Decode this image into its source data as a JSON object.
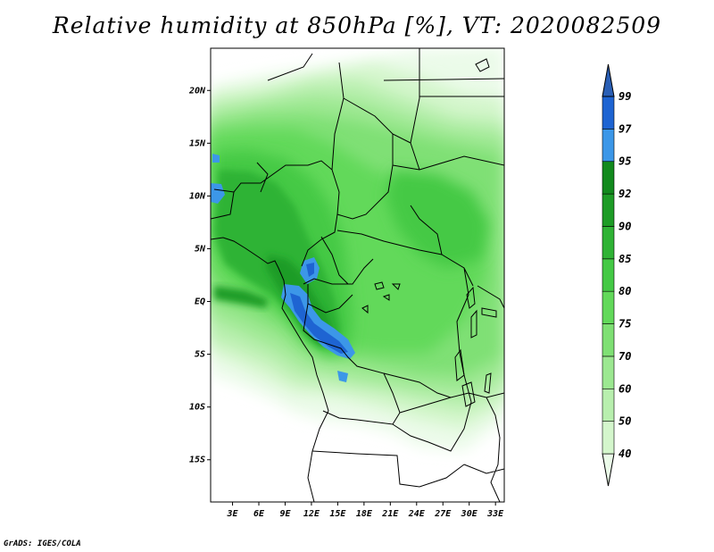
{
  "title": "Relative humidity at 850hPa [%], VT: 2020082509",
  "credit": "GrADS: IGES/COLA",
  "map": {
    "lat_range": [
      -19,
      24
    ],
    "lon_range": [
      0.5,
      34
    ],
    "lat_ticks": [
      {
        "value": 20,
        "label": "20N"
      },
      {
        "value": 15,
        "label": "15N"
      },
      {
        "value": 10,
        "label": "10N"
      },
      {
        "value": 5,
        "label": "5N"
      },
      {
        "value": 0,
        "label": "EQ"
      },
      {
        "value": -5,
        "label": "5S"
      },
      {
        "value": -10,
        "label": "10S"
      },
      {
        "value": -15,
        "label": "15S"
      }
    ],
    "lon_ticks": [
      {
        "value": 3,
        "label": "3E"
      },
      {
        "value": 6,
        "label": "6E"
      },
      {
        "value": 9,
        "label": "9E"
      },
      {
        "value": 12,
        "label": "12E"
      },
      {
        "value": 15,
        "label": "15E"
      },
      {
        "value": 18,
        "label": "18E"
      },
      {
        "value": 21,
        "label": "21E"
      },
      {
        "value": 24,
        "label": "24E"
      },
      {
        "value": 27,
        "label": "27E"
      },
      {
        "value": 30,
        "label": "30E"
      },
      {
        "value": 33,
        "label": "33E"
      }
    ]
  },
  "colorbar": {
    "levels": [
      "40",
      "50",
      "60",
      "70",
      "75",
      "80",
      "85",
      "90",
      "92",
      "95",
      "97",
      "99"
    ],
    "colors": [
      "#ebfbe9",
      "#d4f6cc",
      "#b8efae",
      "#9ce891",
      "#7fe074",
      "#62d95a",
      "#44c945",
      "#2fb335",
      "#1d9c26",
      "#128a1d",
      "#3c97e8",
      "#1e64d2",
      "#2a5fb5"
    ]
  },
  "colors": {
    "background": "#ffffff",
    "lake": "#ffffff",
    "border": "#000000"
  }
}
